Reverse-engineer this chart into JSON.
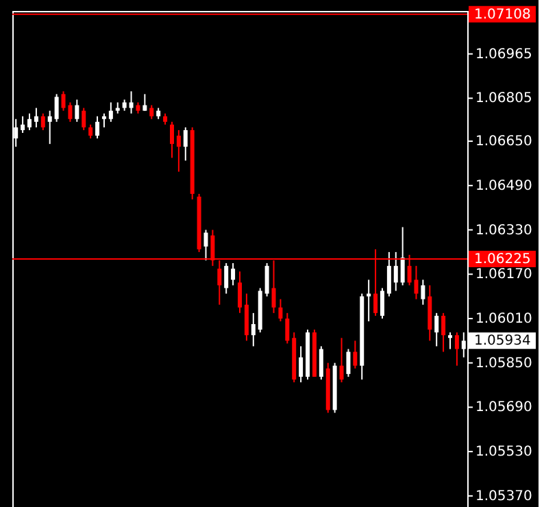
{
  "chart_data": {
    "type": "candlestick",
    "categories": [
      null,
      null,
      null,
      null,
      null,
      null,
      null,
      null,
      null,
      null,
      null,
      null,
      null,
      null,
      null,
      null,
      null,
      null,
      null,
      null,
      null,
      null,
      null,
      null,
      null,
      null,
      null,
      null,
      null,
      null,
      null,
      null,
      null,
      null,
      null,
      null,
      null,
      null,
      null,
      null,
      null,
      null,
      null,
      null,
      null,
      null,
      null,
      null,
      null,
      null,
      null,
      null,
      null,
      null,
      null,
      null,
      null,
      null,
      null,
      null,
      null,
      null,
      null,
      null,
      null,
      null,
      null
    ],
    "ohlc": [
      [
        1.0666,
        1.0673,
        1.0663,
        1.067
      ],
      [
        1.0669,
        1.0674,
        1.0668,
        1.0671
      ],
      [
        1.067,
        1.0675,
        1.0669,
        1.0673
      ],
      [
        1.0672,
        1.0677,
        1.067,
        1.0674
      ],
      [
        1.0674,
        1.0675,
        1.0669,
        1.067
      ],
      [
        1.0672,
        1.0676,
        1.0664,
        1.0674
      ],
      [
        1.0673,
        1.0682,
        1.0672,
        1.0681
      ],
      [
        1.0682,
        1.0683,
        1.0676,
        1.0677
      ],
      [
        1.0678,
        1.0679,
        1.0672,
        1.0673
      ],
      [
        1.0673,
        1.068,
        1.0672,
        1.0678
      ],
      [
        1.0676,
        1.0677,
        1.0669,
        1.067
      ],
      [
        1.067,
        1.0671,
        1.0666,
        1.0667
      ],
      [
        1.0667,
        1.0674,
        1.0666,
        1.0672
      ],
      [
        1.0673,
        1.0675,
        1.067,
        1.0674
      ],
      [
        1.0673,
        1.0679,
        1.0672,
        1.0676
      ],
      [
        1.0676,
        1.0679,
        1.0675,
        1.0677
      ],
      [
        1.0677,
        1.068,
        1.0676,
        1.0679
      ],
      [
        1.0677,
        1.0683,
        1.0675,
        1.0679
      ],
      [
        1.0678,
        1.0679,
        1.0675,
        1.0676
      ],
      [
        1.0676,
        1.0682,
        1.0676,
        1.0678
      ],
      [
        1.0677,
        1.0678,
        1.0673,
        1.0674
      ],
      [
        1.0674,
        1.0677,
        1.0673,
        1.0676
      ],
      [
        1.0674,
        1.0675,
        1.0671,
        1.0672
      ],
      [
        1.0671,
        1.0672,
        1.0659,
        1.0664
      ],
      [
        1.0667,
        1.0669,
        1.0654,
        1.0663
      ],
      [
        1.0663,
        1.067,
        1.0658,
        1.0669
      ],
      [
        1.0669,
        1.067,
        1.0644,
        1.0646
      ],
      [
        1.0645,
        1.0646,
        1.0625,
        1.0626
      ],
      [
        1.0627,
        1.0633,
        1.0622,
        1.0632
      ],
      [
        1.0631,
        1.0633,
        1.062,
        1.0622
      ],
      [
        1.0619,
        1.0622,
        1.0606,
        1.0613
      ],
      [
        1.0612,
        1.0621,
        1.061,
        1.062
      ],
      [
        1.0615,
        1.0621,
        1.0613,
        1.0619
      ],
      [
        1.0614,
        1.0618,
        1.0603,
        1.0605
      ],
      [
        1.0606,
        1.061,
        1.0593,
        1.0595
      ],
      [
        1.0595,
        1.0603,
        1.0591,
        1.0599
      ],
      [
        1.0597,
        1.0612,
        1.0596,
        1.0611
      ],
      [
        1.061,
        1.0621,
        1.0609,
        1.062
      ],
      [
        1.0612,
        1.0622,
        1.0603,
        1.0605
      ],
      [
        1.0605,
        1.0608,
        1.06,
        1.0601
      ],
      [
        1.0601,
        1.0603,
        1.0592,
        1.0593
      ],
      [
        1.0594,
        1.0596,
        1.0578,
        1.0579
      ],
      [
        1.058,
        1.0591,
        1.0578,
        1.0587
      ],
      [
        1.058,
        1.0597,
        1.0579,
        1.0596
      ],
      [
        1.0596,
        1.0597,
        1.058,
        1.058
      ],
      [
        1.058,
        1.0591,
        1.0579,
        1.059
      ],
      [
        1.0583,
        1.0585,
        1.0567,
        1.0568
      ],
      [
        1.0568,
        1.0585,
        1.0567,
        1.0584
      ],
      [
        1.0584,
        1.0594,
        1.0578,
        1.0579
      ],
      [
        1.0581,
        1.059,
        1.058,
        1.0589
      ],
      [
        1.0589,
        1.0593,
        1.0583,
        1.0584
      ],
      [
        1.0584,
        1.061,
        1.0579,
        1.0609
      ],
      [
        1.0609,
        1.0615,
        1.06,
        1.061
      ],
      [
        1.061,
        1.0626,
        1.0602,
        1.0603
      ],
      [
        1.0602,
        1.0612,
        1.0601,
        1.0611
      ],
      [
        1.061,
        1.0625,
        1.0609,
        1.062
      ],
      [
        1.0614,
        1.0625,
        1.0611,
        1.062
      ],
      [
        1.0614,
        1.0634,
        1.0613,
        1.0623
      ],
      [
        1.062,
        1.0624,
        1.0613,
        1.0614
      ],
      [
        1.0615,
        1.062,
        1.0608,
        1.061
      ],
      [
        1.0608,
        1.0615,
        1.0606,
        1.0613
      ],
      [
        1.0609,
        1.0613,
        1.0593,
        1.0597
      ],
      [
        1.0596,
        1.0603,
        1.0591,
        1.0602
      ],
      [
        1.0602,
        1.0603,
        1.0589,
        1.0595
      ],
      [
        1.0594,
        1.0596,
        1.059,
        1.0595
      ],
      [
        1.0595,
        1.0596,
        1.0584,
        1.059
      ],
      [
        1.059,
        1.0596,
        1.0587,
        1.0593
      ]
    ],
    "colors": [
      "#ffffff",
      "#ffffff",
      "#ffffff",
      "#ffffff",
      "#ff0000",
      "#ffffff",
      "#ffffff",
      "#ff0000",
      "#ff0000",
      "#ffffff",
      "#ff0000",
      "#ff0000",
      "#ffffff",
      "#ffffff",
      "#ffffff",
      "#ffffff",
      "#ffffff",
      "#ffffff",
      "#ff0000",
      "#ffffff",
      "#ff0000",
      "#ffffff",
      "#ff0000",
      "#ff0000",
      "#ff0000",
      "#ffffff",
      "#ff0000",
      "#ff0000",
      "#ffffff",
      "#ff0000",
      "#ff0000",
      "#ffffff",
      "#ffffff",
      "#ff0000",
      "#ff0000",
      "#ffffff",
      "#ffffff",
      "#ffffff",
      "#ff0000",
      "#ff0000",
      "#ff0000",
      "#ff0000",
      "#ffffff",
      "#ffffff",
      "#ff0000",
      "#ffffff",
      "#ff0000",
      "#ffffff",
      "#ff0000",
      "#ffffff",
      "#ff0000",
      "#ffffff",
      "#ffffff",
      "#ff0000",
      "#ffffff",
      "#ffffff",
      "#ffffff",
      "#ffffff",
      "#ff0000",
      "#ff0000",
      "#ffffff",
      "#ff0000",
      "#ffffff",
      "#ff0000",
      "#ffffff",
      "#ff0000",
      "#ffffff"
    ],
    "ylim": [
      1.0533,
      1.0712
    ],
    "yticks": [
      1.06965,
      1.06805,
      {
        "value": 1.0665,
        "label": "1.06650"
      },
      {
        "value": 1.0649,
        "label": "1.06490"
      },
      {
        "value": 1.0633,
        "label": "1.06330"
      },
      {
        "value": 1.0617,
        "label": "1.06170"
      },
      {
        "value": 1.0601,
        "label": "1.06010"
      },
      {
        "value": 1.0585,
        "label": "1.05850"
      },
      {
        "value": 1.0569,
        "label": "1.05690"
      },
      {
        "value": 1.0553,
        "label": "1.05530"
      },
      {
        "value": 1.0537,
        "label": "1.05370"
      }
    ],
    "ref_lines": [
      {
        "axis": "y",
        "value": 1.07108,
        "label": "1.07108",
        "color": "#ff0000"
      },
      {
        "axis": "y",
        "value": 1.06225,
        "label": "1.06225",
        "color": "#ff0000"
      }
    ],
    "annotations": [
      "1.05934"
    ],
    "tick_labels": "y",
    "grid": false
  }
}
